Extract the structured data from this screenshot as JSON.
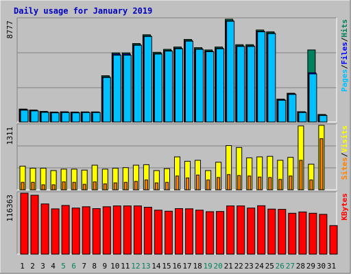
{
  "title": "Daily usage for January 2019",
  "colors": {
    "background": "#c0c0c0",
    "title": "#0000c0",
    "hits": "#00805c",
    "files": "#0000ff",
    "pages": "#00c0ff",
    "visits": "#ffff00",
    "sites": "#ff8000",
    "kbytes": "#ff0000",
    "weekday_label": "#000000",
    "weekend_label": "#00805c"
  },
  "chart_data": [
    {
      "type": "bar",
      "panel": "top",
      "max_label": "8777",
      "ylim": [
        0,
        8777
      ],
      "legend": [
        {
          "label": "Pages",
          "color": "#00c0ff"
        },
        {
          "label": "Files",
          "color": "#0000ff"
        },
        {
          "label": "Hits",
          "color": "#00805c"
        }
      ],
      "categories": [
        "1",
        "2",
        "3",
        "4",
        "5",
        "6",
        "7",
        "8",
        "9",
        "10",
        "11",
        "12",
        "13",
        "14",
        "15",
        "16",
        "17",
        "18",
        "19",
        "20",
        "21",
        "22",
        "23",
        "24",
        "25",
        "26",
        "27",
        "28",
        "29",
        "30",
        "31"
      ],
      "series": [
        {
          "name": "Hits",
          "color": "#00805c",
          "values": [
            1100,
            1020,
            900,
            850,
            870,
            850,
            860,
            860,
            3950,
            5900,
            5900,
            6700,
            7450,
            5950,
            6200,
            6400,
            7050,
            6350,
            6150,
            6400,
            8777,
            6600,
            6600,
            7850,
            7700,
            1950,
            2450,
            880,
            6150,
            640,
            0
          ]
        },
        {
          "name": "Files",
          "color": "#0000ff",
          "values": [
            1060,
            980,
            860,
            820,
            850,
            820,
            830,
            830,
            3850,
            5800,
            5800,
            6600,
            7350,
            5850,
            6100,
            6300,
            6950,
            6250,
            6050,
            6300,
            8650,
            6500,
            6500,
            7750,
            7600,
            1900,
            2400,
            850,
            4200,
            580,
            0
          ]
        },
        {
          "name": "Pages",
          "color": "#00c0ff",
          "values": [
            1000,
            940,
            820,
            780,
            800,
            780,
            800,
            800,
            3800,
            5700,
            5700,
            6550,
            7300,
            5800,
            6050,
            6250,
            6900,
            6200,
            6000,
            6250,
            8600,
            6450,
            6450,
            7700,
            7550,
            1850,
            2350,
            800,
            4100,
            550,
            0
          ]
        }
      ]
    },
    {
      "type": "bar",
      "panel": "middle",
      "max_label": "1311",
      "ylim": [
        0,
        1311
      ],
      "legend": [
        {
          "label": "Sites",
          "color": "#ff8000"
        },
        {
          "label": "Visits",
          "color": "#ffff00"
        }
      ],
      "categories": [
        "1",
        "2",
        "3",
        "4",
        "5",
        "6",
        "7",
        "8",
        "9",
        "10",
        "11",
        "12",
        "13",
        "14",
        "15",
        "16",
        "17",
        "18",
        "19",
        "20",
        "21",
        "22",
        "23",
        "24",
        "25",
        "26",
        "27",
        "28",
        "29",
        "30",
        "31"
      ],
      "series": [
        {
          "name": "Visits",
          "color": "#ffff00",
          "values": [
            480,
            440,
            440,
            390,
            420,
            420,
            400,
            500,
            420,
            440,
            450,
            500,
            510,
            390,
            430,
            670,
            580,
            600,
            390,
            560,
            900,
            860,
            650,
            670,
            680,
            600,
            660,
            1300,
            520,
            1311,
            0
          ]
        },
        {
          "name": "Sites",
          "color": "#ff8000",
          "values": [
            150,
            150,
            100,
            100,
            160,
            150,
            110,
            160,
            120,
            140,
            150,
            170,
            200,
            140,
            150,
            280,
            240,
            300,
            200,
            250,
            310,
            290,
            280,
            260,
            250,
            210,
            280,
            600,
            200,
            1040,
            0
          ]
        }
      ]
    },
    {
      "type": "bar",
      "panel": "bottom",
      "max_label": "116363",
      "ylim": [
        0,
        116363
      ],
      "legend": [
        {
          "label": "KBytes",
          "color": "#ff0000"
        }
      ],
      "categories": [
        "1",
        "2",
        "3",
        "4",
        "5",
        "6",
        "7",
        "8",
        "9",
        "10",
        "11",
        "12",
        "13",
        "14",
        "15",
        "16",
        "17",
        "18",
        "19",
        "20",
        "21",
        "22",
        "23",
        "24",
        "25",
        "26",
        "27",
        "28",
        "29",
        "30",
        "31"
      ],
      "series": [
        {
          "name": "KBytes",
          "color": "#ff0000",
          "values": [
            116363,
            112500,
            95800,
            86400,
            93000,
            88000,
            90500,
            87000,
            90500,
            92000,
            92000,
            92000,
            89500,
            84000,
            82000,
            87000,
            86500,
            84000,
            81000,
            81500,
            92000,
            92000,
            88000,
            92500,
            86000,
            85500,
            78000,
            80500,
            78000,
            76000,
            54500
          ]
        }
      ]
    }
  ],
  "x_labels": [
    {
      "text": "1",
      "weekend": false
    },
    {
      "text": "2",
      "weekend": false
    },
    {
      "text": "3",
      "weekend": false
    },
    {
      "text": "4",
      "weekend": false
    },
    {
      "text": "5",
      "weekend": true
    },
    {
      "text": "6",
      "weekend": true
    },
    {
      "text": "7",
      "weekend": false
    },
    {
      "text": "8",
      "weekend": false
    },
    {
      "text": "9",
      "weekend": false
    },
    {
      "text": "10",
      "weekend": false
    },
    {
      "text": "11",
      "weekend": false
    },
    {
      "text": "12",
      "weekend": true
    },
    {
      "text": "13",
      "weekend": true
    },
    {
      "text": "14",
      "weekend": false
    },
    {
      "text": "15",
      "weekend": false
    },
    {
      "text": "16",
      "weekend": false
    },
    {
      "text": "17",
      "weekend": false
    },
    {
      "text": "18",
      "weekend": false
    },
    {
      "text": "19",
      "weekend": true
    },
    {
      "text": "20",
      "weekend": true
    },
    {
      "text": "21",
      "weekend": false
    },
    {
      "text": "22",
      "weekend": false
    },
    {
      "text": "23",
      "weekend": false
    },
    {
      "text": "24",
      "weekend": false
    },
    {
      "text": "25",
      "weekend": false
    },
    {
      "text": "26",
      "weekend": true
    },
    {
      "text": "27",
      "weekend": true
    },
    {
      "text": "28",
      "weekend": false
    },
    {
      "text": "29",
      "weekend": false
    },
    {
      "text": "30",
      "weekend": false
    },
    {
      "text": "31",
      "weekend": false
    }
  ]
}
